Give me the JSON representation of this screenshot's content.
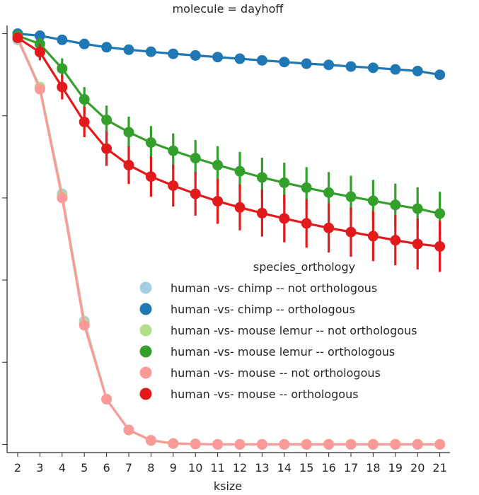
{
  "chart_data": {
    "type": "line",
    "title": "molecule = dayhoff",
    "xlabel": "ksize",
    "ylabel": "",
    "x": [
      2,
      3,
      4,
      5,
      6,
      7,
      8,
      9,
      10,
      11,
      12,
      13,
      14,
      15,
      16,
      17,
      18,
      19,
      20,
      21
    ],
    "ylim": [
      -0.02,
      1.02
    ],
    "y_ticks": [
      0.0,
      0.2,
      0.4,
      0.6,
      0.8,
      1.0
    ],
    "y_tick_labels_shown": false,
    "legend": {
      "title": "species_orthology",
      "placement": "center-right"
    },
    "series": [
      {
        "name": "human -vs- chimp -- not orthologous",
        "color": "#a6cee3",
        "values": [
          0.985,
          0.87,
          0.61,
          0.3,
          0.11,
          0.035,
          0.01,
          0.002,
          0.001,
          0.0,
          0.0,
          0.0,
          0.0,
          0.0,
          0.0,
          0.0,
          0.0,
          0.0,
          0.0,
          0.0
        ],
        "error": [
          0,
          0,
          0,
          0,
          0,
          0,
          0,
          0,
          0,
          0,
          0,
          0,
          0,
          0,
          0,
          0,
          0,
          0,
          0,
          0
        ]
      },
      {
        "name": "human -vs- chimp -- orthologous",
        "color": "#1f78b4",
        "values": [
          1.0,
          0.995,
          0.985,
          0.975,
          0.967,
          0.961,
          0.956,
          0.951,
          0.947,
          0.943,
          0.939,
          0.935,
          0.931,
          0.927,
          0.924,
          0.92,
          0.917,
          0.913,
          0.909,
          0.9
        ],
        "error": [
          0,
          0,
          0,
          0,
          0,
          0,
          0,
          0,
          0,
          0,
          0,
          0,
          0,
          0,
          0,
          0,
          0,
          0,
          0,
          0
        ]
      },
      {
        "name": "human -vs- mouse lemur -- not orthologous",
        "color": "#b2df8a",
        "values": [
          0.99,
          0.87,
          0.605,
          0.295,
          0.11,
          0.035,
          0.009,
          0.002,
          0.001,
          0.0,
          0.0,
          0.0,
          0.0,
          0.0,
          0.0,
          0.0,
          0.0,
          0.0,
          0.0,
          0.0
        ],
        "error": [
          0,
          0,
          0,
          0,
          0,
          0,
          0,
          0,
          0,
          0,
          0,
          0,
          0,
          0,
          0,
          0,
          0,
          0,
          0,
          0
        ]
      },
      {
        "name": "human -vs- mouse lemur -- orthologous",
        "color": "#33a02c",
        "values": [
          0.995,
          0.975,
          0.915,
          0.84,
          0.79,
          0.76,
          0.735,
          0.715,
          0.697,
          0.68,
          0.665,
          0.65,
          0.637,
          0.625,
          0.613,
          0.603,
          0.593,
          0.583,
          0.574,
          0.562
        ],
        "error": [
          0.006,
          0.015,
          0.025,
          0.03,
          0.035,
          0.038,
          0.04,
          0.042,
          0.044,
          0.046,
          0.047,
          0.048,
          0.049,
          0.05,
          0.05,
          0.051,
          0.051,
          0.052,
          0.052,
          0.053
        ]
      },
      {
        "name": "human -vs- mouse -- not orthologous",
        "color": "#fb9a99",
        "values": [
          0.99,
          0.865,
          0.6,
          0.29,
          0.11,
          0.035,
          0.01,
          0.002,
          0.001,
          0.0,
          0.0,
          0.0,
          0.0,
          0.0,
          0.0,
          0.0,
          0.0,
          0.0,
          0.0,
          0.0
        ],
        "error": [
          0,
          0,
          0,
          0,
          0,
          0,
          0,
          0,
          0,
          0,
          0,
          0,
          0,
          0,
          0,
          0,
          0,
          0,
          0,
          0
        ]
      },
      {
        "name": "human -vs- mouse -- orthologous",
        "color": "#e31a1c",
        "values": [
          0.99,
          0.955,
          0.87,
          0.785,
          0.72,
          0.68,
          0.652,
          0.63,
          0.61,
          0.592,
          0.577,
          0.563,
          0.55,
          0.538,
          0.527,
          0.517,
          0.507,
          0.497,
          0.488,
          0.482
        ],
        "error": [
          0.007,
          0.02,
          0.03,
          0.037,
          0.042,
          0.046,
          0.049,
          0.051,
          0.053,
          0.055,
          0.056,
          0.057,
          0.058,
          0.059,
          0.06,
          0.06,
          0.061,
          0.061,
          0.062,
          0.062
        ]
      }
    ]
  }
}
